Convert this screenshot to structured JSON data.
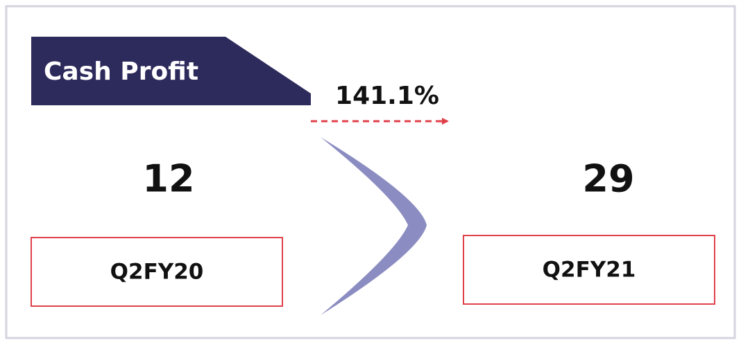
{
  "title": "Cash Profit",
  "change": "141.1%",
  "periods": [
    {
      "value": 12,
      "label": "Q2FY20"
    },
    {
      "value": 29,
      "label": "Q2FY21"
    }
  ]
}
